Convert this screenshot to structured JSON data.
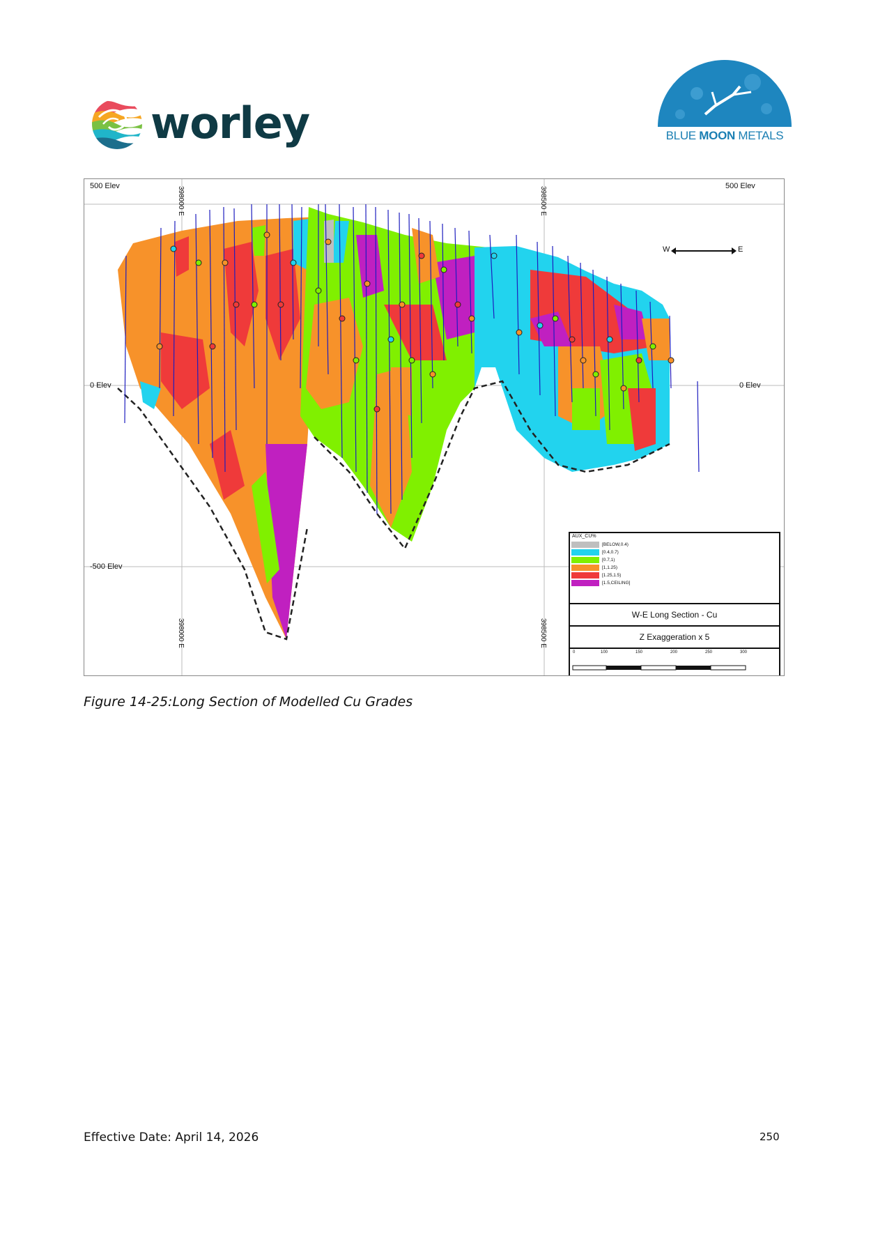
{
  "header": {
    "left_logo": {
      "name": "worley",
      "text": "worley"
    },
    "right_logo": {
      "name": "blue-moon-metals",
      "text_part1": "BLUE ",
      "text_bold": "MOON",
      "text_part2": " METALS"
    }
  },
  "figure": {
    "elevation_labels": {
      "top_left": "500 Elev",
      "top_right": "500 Elev",
      "mid_left": "0 Elev",
      "mid_right": "0 Elev",
      "bottom_left": "-500 Elev"
    },
    "easting_labels": {
      "top_a": "398000 E",
      "top_b": "398500 E",
      "bottom_a": "398000 E",
      "bottom_b": "398500 E"
    },
    "compass": {
      "west": "W",
      "east": "E"
    },
    "legend": {
      "title": "AUX_CU%",
      "items": [
        {
          "label": "[BELOW,0.4)",
          "color": "#bfbfbf"
        },
        {
          "label": "[0.4,0.7)",
          "color": "#22d3ee"
        },
        {
          "label": "[0.7,1)",
          "color": "#80f000"
        },
        {
          "label": "[1,1.25)",
          "color": "#f7922a"
        },
        {
          "label": "[1.25,1.5)",
          "color": "#ef3a3a"
        },
        {
          "label": "[1.5,CEILING]",
          "color": "#c020c0"
        }
      ]
    },
    "section_title": "W-E Long Section - Cu",
    "exaggeration": "Z Exaggeration x 5",
    "scale_labels": [
      "0",
      "100",
      "150",
      "200",
      "250",
      "300"
    ]
  },
  "caption": "Figure 14-25:Long Section of Modelled Cu Grades",
  "footer": {
    "effective_date": "Effective Date: April 14, 2026",
    "page_number": "250"
  },
  "colors": {
    "brand_worley": "#0f3a44",
    "brand_bluemoon": "#1b7fb3"
  }
}
